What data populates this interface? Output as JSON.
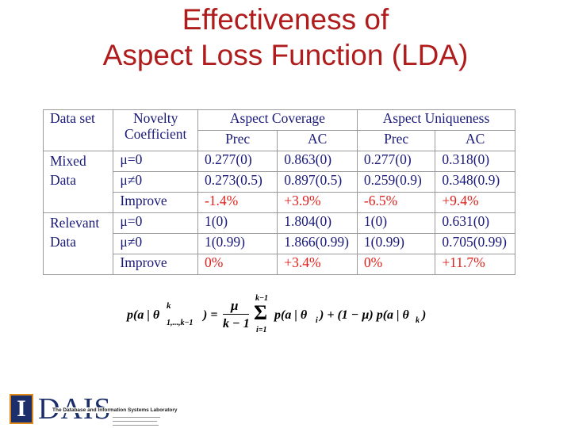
{
  "slide": {
    "title_line1": "Effectiveness of",
    "title_line2": "Aspect Loss Function (LDA)"
  },
  "table": {
    "header": {
      "data_set": "Data set",
      "novelty_line1": "Novelty",
      "novelty_line2": "Coefficient",
      "aspect_coverage": "Aspect Coverage",
      "aspect_uniqueness": "Aspect Uniqueness",
      "prec": "Prec",
      "ac": "AC"
    },
    "groups": [
      {
        "label_line1": "Mixed",
        "label_line2": "Data",
        "rows": [
          {
            "coef": "μ=0",
            "cells": [
              "0.277(0)",
              "0.863(0)",
              "0.277(0)",
              "0.318(0)"
            ]
          },
          {
            "coef": "μ≠0",
            "cells": [
              "0.273(0.5)",
              "0.897(0.5)",
              "0.259(0.9)",
              "0.348(0.9)"
            ]
          },
          {
            "coef": "Improve",
            "cells": [
              "-1.4%",
              "+3.9%",
              "-6.5%",
              "+9.4%"
            ]
          }
        ]
      },
      {
        "label_line1": "Relevant",
        "label_line2": "Data",
        "rows": [
          {
            "coef": "μ=0",
            "cells": [
              "1(0)",
              "1.804(0)",
              "1(0)",
              "0.631(0)"
            ]
          },
          {
            "coef": "μ≠0",
            "cells": [
              "1(0.99)",
              "1.866(0.99)",
              "1(0.99)",
              "0.705(0.99)"
            ]
          },
          {
            "coef": "Improve",
            "cells": [
              "0%",
              "+3.4%",
              "0%",
              "+11.7%"
            ]
          }
        ]
      }
    ],
    "improve_color": "#e0201c",
    "text_color": "#1a1a7a"
  },
  "formula": {
    "lhs": "p(a | θ",
    "lhs_sup": "k",
    "lhs_sub": "1,...,k−1",
    "lhs_close": ") =",
    "mu": "μ",
    "denom": "k − 1",
    "sum_top": "k−1",
    "sum_sign": "Σ",
    "sum_bottom": "i=1",
    "term1": "p(a | θ",
    "term1_sub": "i",
    "term2": ") + (1 − μ) p(a | θ",
    "term2_sub": "k",
    "term2_close": ")"
  },
  "logo": {
    "mark": "I",
    "name": "DAIS",
    "lab": "The Database and Information Systems Laboratory"
  }
}
